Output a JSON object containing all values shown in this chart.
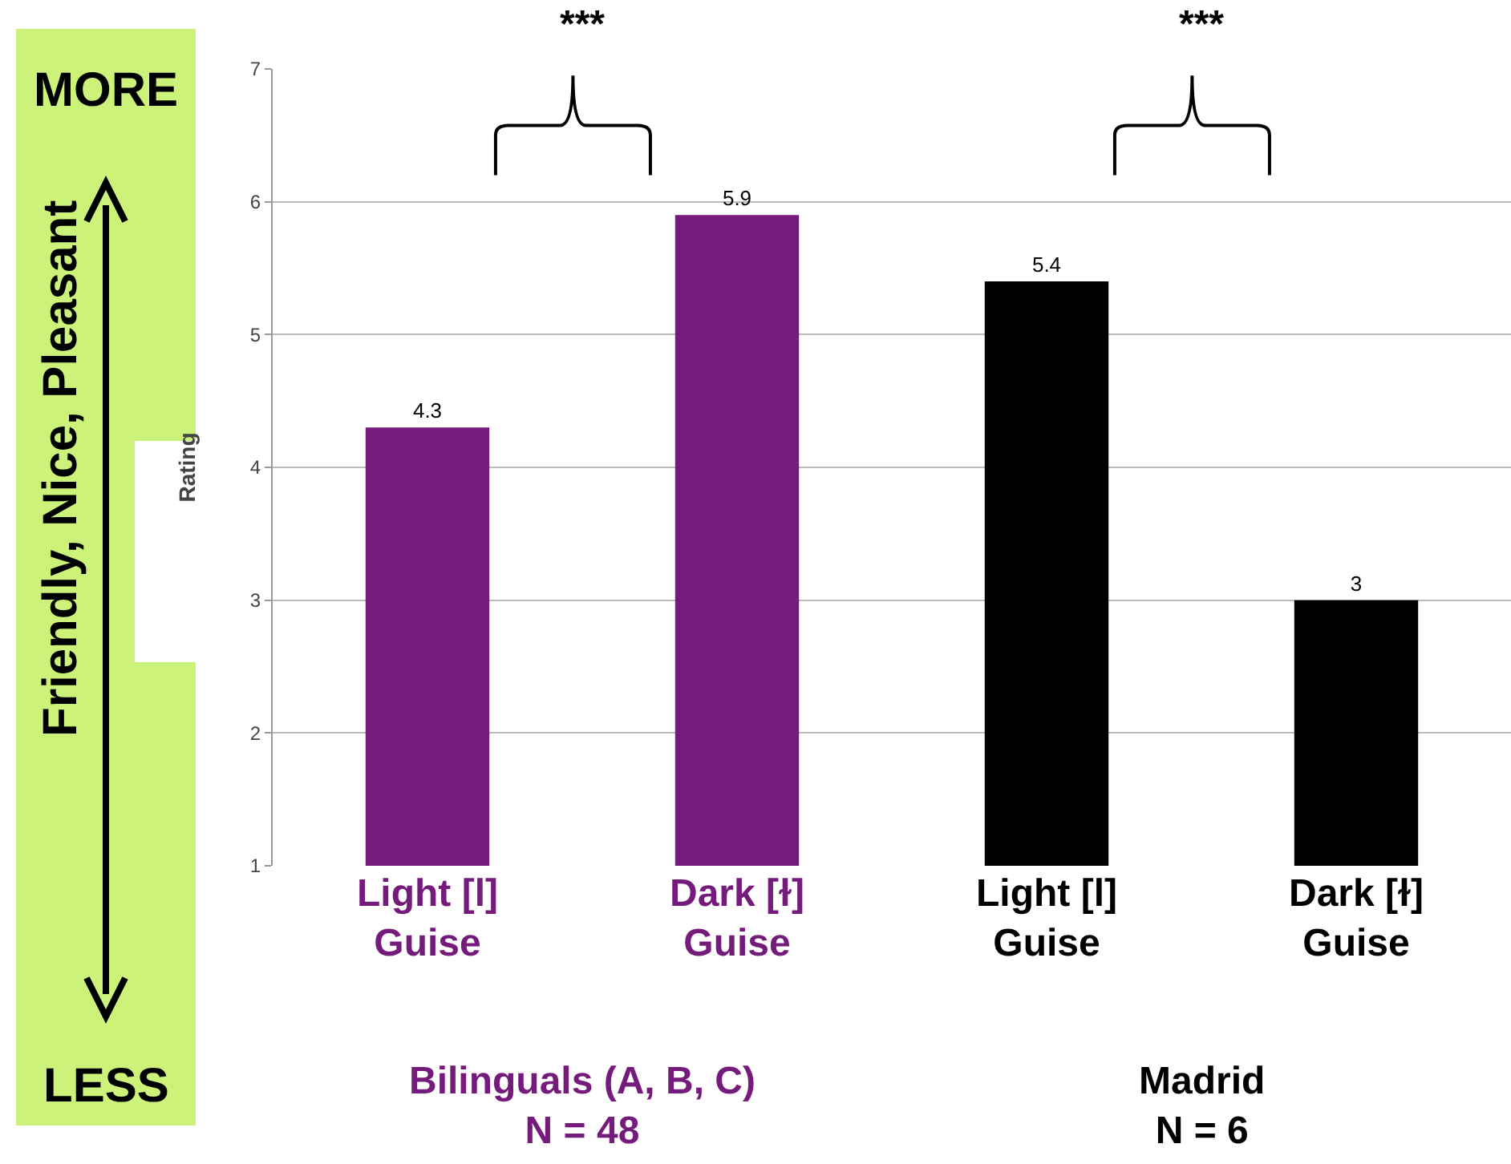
{
  "chart_data": {
    "type": "bar",
    "categories": [
      "Light [l]\nGuise",
      "Dark [ɫ]\nGuise",
      "Light [l]\nGuise",
      "Dark [ɫ]\nGuise"
    ],
    "values": [
      4.3,
      5.9,
      5.4,
      3
    ],
    "colors": [
      "#741b7c",
      "#741b7c",
      "#000000",
      "#000000"
    ],
    "ylabel": "Rating",
    "ylim": [
      1,
      7
    ],
    "yticks": [
      1,
      2,
      3,
      4,
      5,
      6,
      7
    ],
    "grid": "y",
    "data_labels": true,
    "annotations": [
      "***",
      "***",
      "Bilinguals (A, B, C)\nN = 48",
      "Madrid\nN = 6",
      "MORE",
      "LESS",
      "Friendly, Nice, Pleasant"
    ]
  }
}
